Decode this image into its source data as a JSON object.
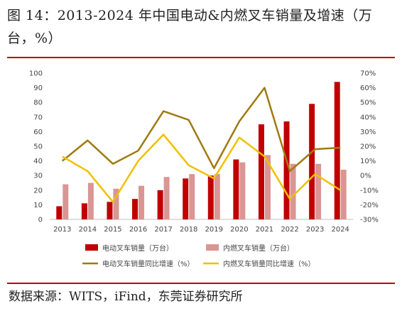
{
  "figure": {
    "title": "图 14：2013-2024 年中国电动&内燃叉车销量及增速（万台，%）",
    "source": "数据来源：WITS，iFind，东莞证券研究所"
  },
  "colors": {
    "ev_sales": "#c00000",
    "ice_sales": "#d99694",
    "ev_growth": "#a07a10",
    "ice_growth": "#f0c000",
    "rule": "#c00000"
  },
  "chart_data": {
    "type": "bar",
    "categories": [
      "2013",
      "2014",
      "2015",
      "2016",
      "2017",
      "2018",
      "2019",
      "2020",
      "2021",
      "2022",
      "2023",
      "2024"
    ],
    "series": [
      {
        "name": "电动叉车销量（万台）",
        "kind": "bar",
        "axis": "left",
        "values": [
          9,
          11,
          12,
          14,
          20,
          28,
          30,
          41,
          65,
          67,
          79,
          94
        ]
      },
      {
        "name": "内燃叉车销量（万台）",
        "kind": "bar",
        "axis": "left",
        "values": [
          24,
          25,
          21,
          23,
          29,
          31,
          31,
          39,
          44,
          38,
          38,
          34
        ]
      },
      {
        "name": "电动叉车销量同比增速（%）",
        "kind": "line",
        "axis": "right",
        "values": [
          10,
          24,
          8,
          17,
          44,
          38,
          5,
          37,
          60,
          3,
          18,
          19
        ]
      },
      {
        "name": "内燃叉车销量同比增速（%）",
        "kind": "line",
        "axis": "right",
        "values": [
          13,
          3,
          -18,
          10,
          28,
          7,
          -2,
          26,
          13,
          -16,
          1,
          -10
        ]
      }
    ],
    "ylim_left": [
      0,
      100
    ],
    "yticks_left": [
      "0",
      "10",
      "20",
      "30",
      "40",
      "50",
      "60",
      "70",
      "80",
      "90",
      "100"
    ],
    "ylim_right": [
      -30,
      70
    ],
    "yticks_right": [
      "-30%",
      "-20%",
      "-10%",
      "0%",
      "10%",
      "20%",
      "30%",
      "40%",
      "50%",
      "60%",
      "70%"
    ],
    "legend_position": "bottom",
    "grid": false
  }
}
